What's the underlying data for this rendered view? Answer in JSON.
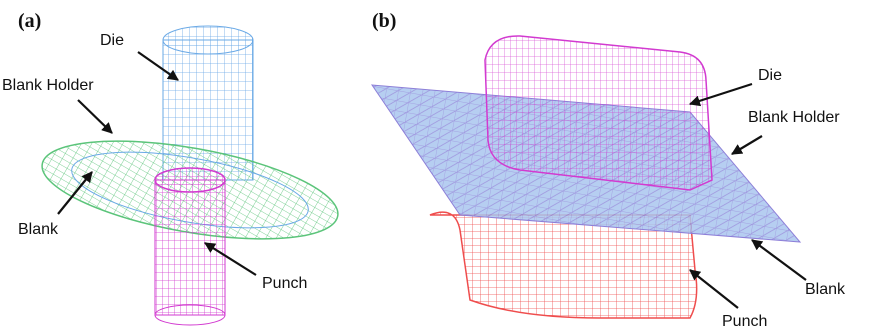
{
  "panels": [
    {
      "label": "(a)",
      "callouts": [
        "Die",
        "Blank Holder",
        "Blank",
        "Punch"
      ]
    },
    {
      "label": "(b)",
      "callouts": [
        "Die",
        "Blank Holder",
        "Blank",
        "Punch"
      ]
    }
  ]
}
